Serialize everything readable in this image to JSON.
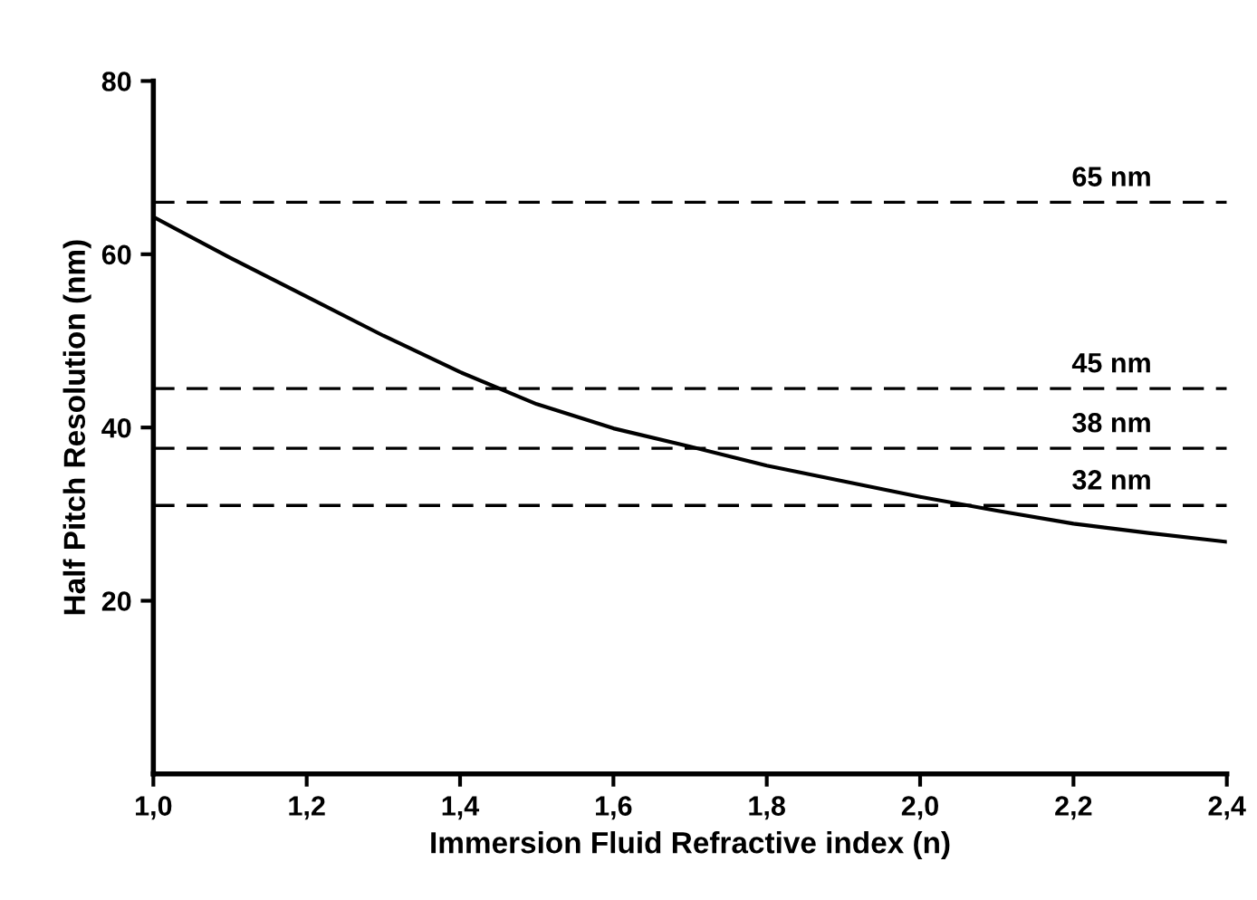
{
  "chart_data": {
    "type": "line",
    "xlabel": "Immersion Fluid Refractive index (n)",
    "ylabel": "Half Pitch Resolution (nm)",
    "x": [
      1.0,
      1.1,
      1.2,
      1.3,
      1.4,
      1.5,
      1.6,
      1.7,
      1.8,
      1.9,
      2.0,
      2.1,
      2.2,
      2.3,
      2.4
    ],
    "series": [
      {
        "color": "#000000",
        "values": [
          64.3,
          59.6,
          55.1,
          50.6,
          46.4,
          42.7,
          39.9,
          37.8,
          35.6,
          33.8,
          32.0,
          30.4,
          28.9,
          27.8,
          26.8
        ]
      }
    ],
    "xlim": [
      1.0,
      2.4
    ],
    "ylim": [
      0,
      80
    ],
    "xticks": [
      {
        "value": 1.0,
        "label": "1,0"
      },
      {
        "value": 1.2,
        "label": "1,2"
      },
      {
        "value": 1.4,
        "label": "1,4"
      },
      {
        "value": 1.6,
        "label": "1,6"
      },
      {
        "value": 1.8,
        "label": "1,8"
      },
      {
        "value": 2.0,
        "label": "2,0"
      },
      {
        "value": 2.2,
        "label": "2,2"
      },
      {
        "value": 2.4,
        "label": "2,4"
      }
    ],
    "yticks": [
      20,
      40,
      60,
      80
    ],
    "ref_lines": [
      {
        "axis": "y",
        "value": 66,
        "label": "65 nm",
        "line_style": "dashed",
        "color": "#000000"
      },
      {
        "axis": "y",
        "value": 44.5,
        "label": "45 nm",
        "line_style": "dashed",
        "color": "#000000"
      },
      {
        "axis": "y",
        "value": 37.6,
        "label": "38 nm",
        "line_style": "dashed",
        "color": "#000000"
      },
      {
        "axis": "y",
        "value": 31.0,
        "label": "32 nm",
        "line_style": "dashed",
        "color": "#000000"
      }
    ],
    "grid": false,
    "marker": "none",
    "line_style": "solid"
  }
}
